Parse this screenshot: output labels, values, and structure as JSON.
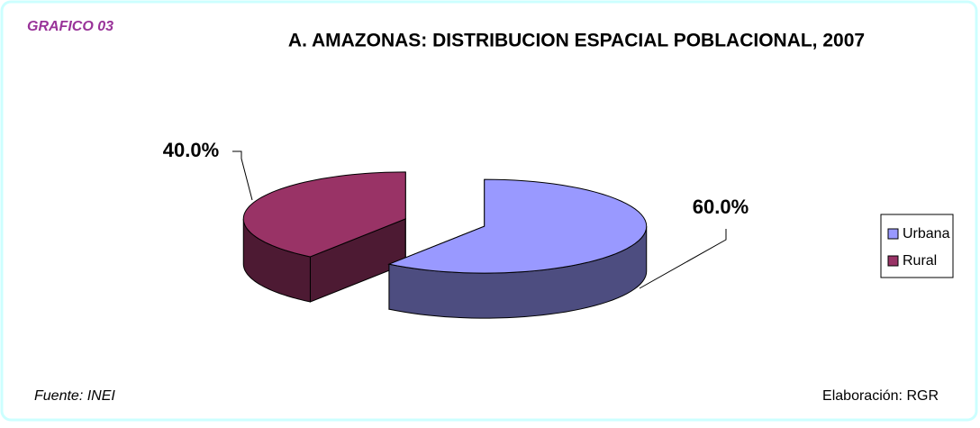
{
  "chart_data": {
    "type": "pie",
    "label": "GRAFICO 03",
    "title": "A. AMAZONAS: DISTRIBUCION ESPACIAL POBLACIONAL, 2007",
    "categories": [
      "Urbana",
      "Rural"
    ],
    "values": [
      60,
      40
    ],
    "value_labels": [
      "60.0%",
      "40.0%"
    ],
    "colors": [
      "#9999ff",
      "#993366"
    ],
    "legend": "right",
    "source": "Fuente: INEI",
    "credit": "Elaboración: RGR"
  }
}
